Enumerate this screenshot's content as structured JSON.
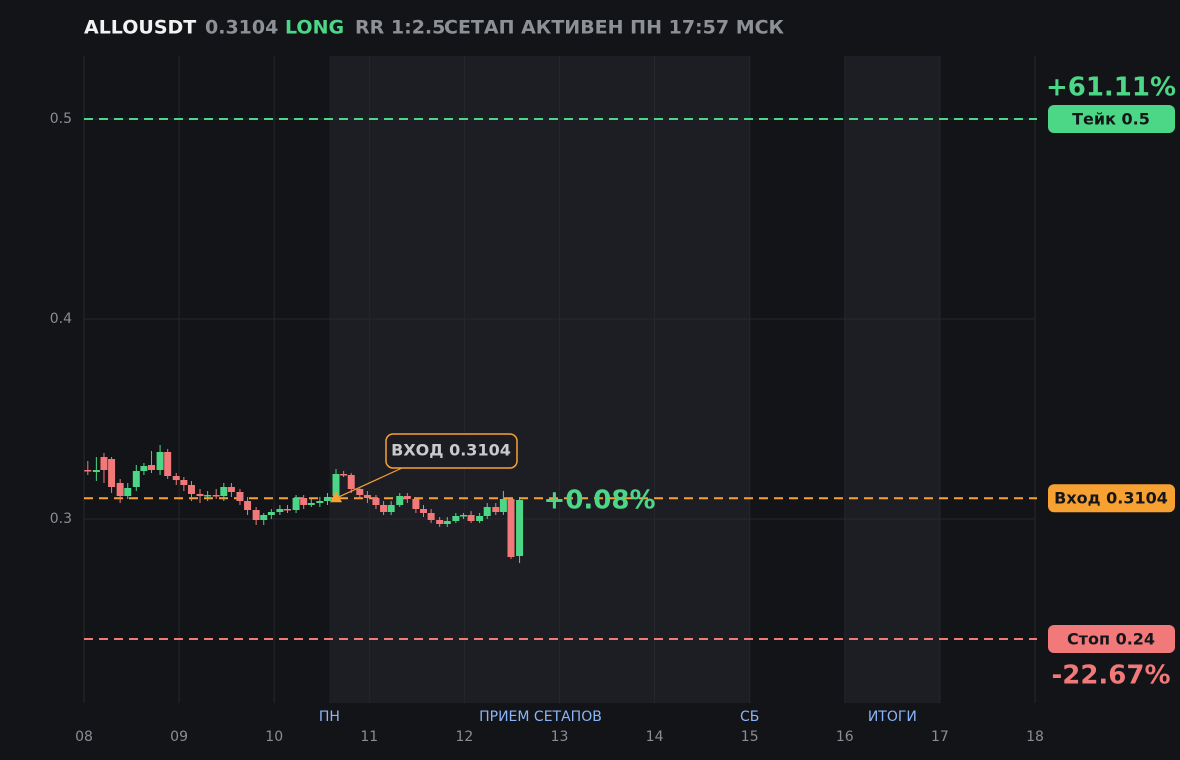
{
  "chart_data": {
    "type": "candlestick",
    "header": {
      "symbol": "ALLOUSDT",
      "price": 0.3104,
      "side": "LONG",
      "rr": "RR 1:2.5",
      "status": "СЕТАП АКТИВЕН ПН 17:57 МСК"
    },
    "xlim": [
      8,
      18
    ],
    "xticks": [
      {
        "value": 8,
        "label": "08"
      },
      {
        "value": 9,
        "label": "09"
      },
      10,
      11,
      12,
      13,
      14,
      15,
      16,
      17,
      18
    ],
    "ylim": [
      0.208,
      0.5315
    ],
    "yticks": [
      0.3,
      0.4,
      0.5
    ],
    "grid": true,
    "up_color": "#4cd787",
    "down_color": "#f27979",
    "shaded": [
      [
        10.58,
        15
      ],
      [
        16,
        17
      ]
    ],
    "markers": [
      {
        "label": "ПН",
        "x": 10.58
      },
      {
        "label": "ПРИЕМ СЕТАПОВ",
        "x": 12.8
      },
      {
        "label": "СБ",
        "x": 15
      },
      {
        "label": "ИТОГИ",
        "x": 16.5
      }
    ],
    "x": [
      8.04,
      8.13,
      8.21,
      8.29,
      8.38,
      8.46,
      8.55,
      8.63,
      8.71,
      8.8,
      8.88,
      8.97,
      9.05,
      9.13,
      9.22,
      9.3,
      9.39,
      9.47,
      9.55,
      9.64,
      9.72,
      9.81,
      9.89,
      9.97,
      10.06,
      10.14,
      10.23,
      10.31,
      10.39,
      10.48,
      10.56,
      10.65,
      10.73,
      10.81,
      10.9,
      10.98,
      11.07,
      11.15,
      11.23,
      11.32,
      11.4,
      11.49,
      11.57,
      11.65,
      11.74,
      11.82,
      11.91,
      11.99,
      12.07,
      12.16,
      12.24,
      12.33,
      12.41,
      12.49,
      12.58
    ],
    "open": [
      0.3245,
      0.3235,
      0.331,
      0.33,
      0.318,
      0.3115,
      0.316,
      0.324,
      0.327,
      0.3245,
      0.3335,
      0.3215,
      0.3195,
      0.317,
      0.3125,
      0.3115,
      0.312,
      0.3115,
      0.316,
      0.3135,
      0.309,
      0.3045,
      0.2995,
      0.302,
      0.3035,
      0.305,
      0.3045,
      0.3105,
      0.307,
      0.308,
      0.309,
      0.3115,
      0.3225,
      0.322,
      0.315,
      0.312,
      0.3105,
      0.307,
      0.3035,
      0.307,
      0.3115,
      0.31,
      0.305,
      0.303,
      0.2995,
      0.2975,
      0.299,
      0.3015,
      0.302,
      0.299,
      0.3015,
      0.306,
      0.3035,
      0.31,
      0.2815
    ],
    "high": [
      0.329,
      0.331,
      0.333,
      0.331,
      0.32,
      0.318,
      0.327,
      0.328,
      0.334,
      0.337,
      0.335,
      0.323,
      0.321,
      0.319,
      0.315,
      0.314,
      0.315,
      0.318,
      0.318,
      0.315,
      0.311,
      0.306,
      0.303,
      0.305,
      0.307,
      0.307,
      0.312,
      0.312,
      0.31,
      0.311,
      0.313,
      0.325,
      0.324,
      0.323,
      0.316,
      0.314,
      0.312,
      0.309,
      0.309,
      0.313,
      0.313,
      0.311,
      0.307,
      0.305,
      0.301,
      0.301,
      0.303,
      0.303,
      0.304,
      0.303,
      0.308,
      0.308,
      0.314,
      0.311,
      0.311
    ],
    "low": [
      0.322,
      0.319,
      0.318,
      0.313,
      0.308,
      0.31,
      0.314,
      0.322,
      0.323,
      0.322,
      0.32,
      0.317,
      0.314,
      0.309,
      0.308,
      0.309,
      0.31,
      0.309,
      0.311,
      0.307,
      0.302,
      0.297,
      0.297,
      0.3,
      0.302,
      0.303,
      0.303,
      0.305,
      0.306,
      0.306,
      0.307,
      0.31,
      0.321,
      0.313,
      0.31,
      0.308,
      0.305,
      0.302,
      0.302,
      0.306,
      0.308,
      0.303,
      0.301,
      0.298,
      0.296,
      0.296,
      0.298,
      0.3,
      0.298,
      0.298,
      0.3,
      0.302,
      0.302,
      0.28,
      0.278
    ],
    "close": [
      0.324,
      0.3245,
      0.3245,
      0.316,
      0.3115,
      0.3155,
      0.324,
      0.3265,
      0.3245,
      0.3335,
      0.3215,
      0.3195,
      0.317,
      0.3125,
      0.3115,
      0.312,
      0.3115,
      0.316,
      0.3135,
      0.309,
      0.3045,
      0.2995,
      0.302,
      0.3035,
      0.305,
      0.3045,
      0.3105,
      0.307,
      0.308,
      0.309,
      0.311,
      0.3225,
      0.322,
      0.315,
      0.312,
      0.3105,
      0.307,
      0.3035,
      0.307,
      0.3115,
      0.31,
      0.305,
      0.303,
      0.2995,
      0.2975,
      0.299,
      0.3015,
      0.302,
      0.299,
      0.3015,
      0.306,
      0.3035,
      0.31,
      0.281,
      0.3095
    ],
    "levels": [
      {
        "label": "Тейк 0.5",
        "value": 0.5,
        "color": "#4cd787",
        "change": 61.11,
        "change_label": "+61.11%"
      },
      {
        "label": "Вход 0.3104",
        "value": 0.3104,
        "color": "#f7a133"
      },
      {
        "label": "Стоп 0.24",
        "value": 0.24,
        "color": "#f27979",
        "change": -22.67,
        "change_label": "-22.67%"
      }
    ],
    "entry_annotation": {
      "text": "ВХОД 0.3104",
      "x": 10.65,
      "y": 0.3104
    },
    "current_change": 0.08,
    "current_change_label": "+0.08%"
  }
}
